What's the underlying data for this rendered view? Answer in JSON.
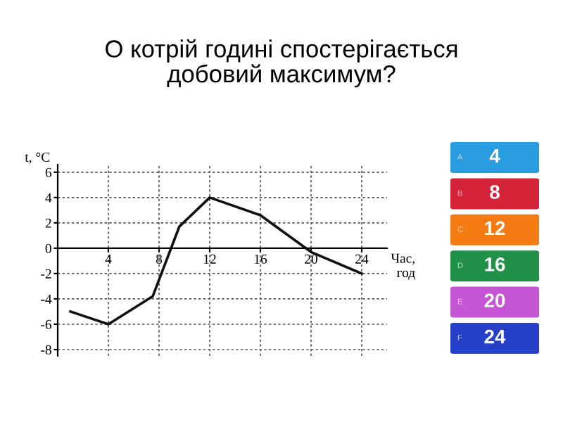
{
  "chart_data": {
    "type": "line",
    "title": "О котрій годині спостерігається\nдобовий максимум?",
    "xlabel": "Час,\nгод",
    "ylabel": "t, °C",
    "x": [
      1,
      4,
      7.5,
      9.6,
      12,
      16,
      20,
      24
    ],
    "series": [
      {
        "color": "#111111",
        "values": [
          -5,
          -6,
          -3.8,
          1.7,
          4,
          2.6,
          -0.3,
          -2
        ]
      }
    ],
    "xlim": [
      0,
      26
    ],
    "ylim": [
      -8.5,
      6.6
    ],
    "xticks": [
      4,
      8,
      12,
      16,
      20,
      24
    ],
    "yticks": [
      -8,
      -6,
      -4,
      -2,
      0,
      2,
      4,
      6
    ],
    "grid": true,
    "marker": "none",
    "line_style": "solid",
    "annotations": [
      "A",
      "4",
      "B",
      "8",
      "C",
      "12",
      "D",
      "16",
      "E",
      "20",
      "F",
      "24"
    ]
  }
}
